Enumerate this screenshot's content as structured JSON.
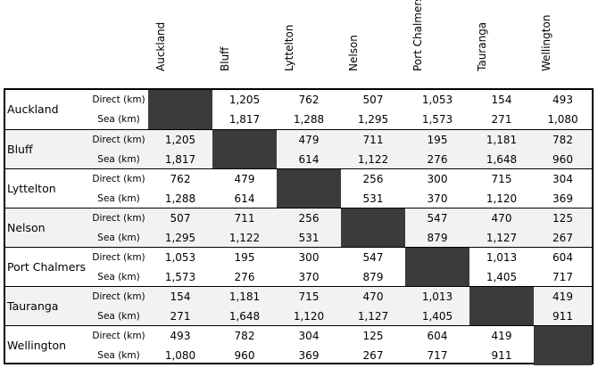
{
  "columns": [
    "Auckland",
    "Bluff",
    "Lyttelton",
    "Nelson",
    "Port Chalmers",
    "Tauranga",
    "Wellington"
  ],
  "row_labels": {
    "direct": "Direct (km)",
    "sea": "Sea (km)"
  },
  "rows": [
    {
      "city": "Auckland",
      "direct": [
        "",
        "1,205",
        "762",
        "507",
        "1,053",
        "154",
        "493"
      ],
      "sea": [
        "",
        "1,817",
        "1,288",
        "1,295",
        "1,573",
        "271",
        "1,080"
      ]
    },
    {
      "city": "Bluff",
      "direct": [
        "1,205",
        "",
        "479",
        "711",
        "195",
        "1,181",
        "782"
      ],
      "sea": [
        "1,817",
        "",
        "614",
        "1,122",
        "276",
        "1,648",
        "960"
      ]
    },
    {
      "city": "Lyttelton",
      "direct": [
        "762",
        "479",
        "",
        "256",
        "300",
        "715",
        "304"
      ],
      "sea": [
        "1,288",
        "614",
        "",
        "531",
        "370",
        "1,120",
        "369"
      ]
    },
    {
      "city": "Nelson",
      "direct": [
        "507",
        "711",
        "256",
        "",
        "547",
        "470",
        "125"
      ],
      "sea": [
        "1,295",
        "1,122",
        "531",
        "",
        "879",
        "1,127",
        "267"
      ]
    },
    {
      "city": "Port Chalmers",
      "direct": [
        "1,053",
        "195",
        "300",
        "547",
        "",
        "1,013",
        "604"
      ],
      "sea": [
        "1,573",
        "276",
        "370",
        "879",
        "",
        "1,405",
        "717"
      ]
    },
    {
      "city": "Tauranga",
      "direct": [
        "154",
        "1,181",
        "715",
        "470",
        "1,013",
        "",
        "419"
      ],
      "sea": [
        "271",
        "1,648",
        "1,120",
        "1,127",
        "1,405",
        "",
        "911"
      ]
    },
    {
      "city": "Wellington",
      "direct": [
        "493",
        "782",
        "304",
        "125",
        "604",
        "419",
        ""
      ],
      "sea": [
        "1,080",
        "960",
        "369",
        "267",
        "717",
        "911",
        ""
      ]
    }
  ],
  "colors": {
    "diagonal": "#3b3b3b",
    "shade": "#f2f2f2",
    "border": "#000000"
  }
}
